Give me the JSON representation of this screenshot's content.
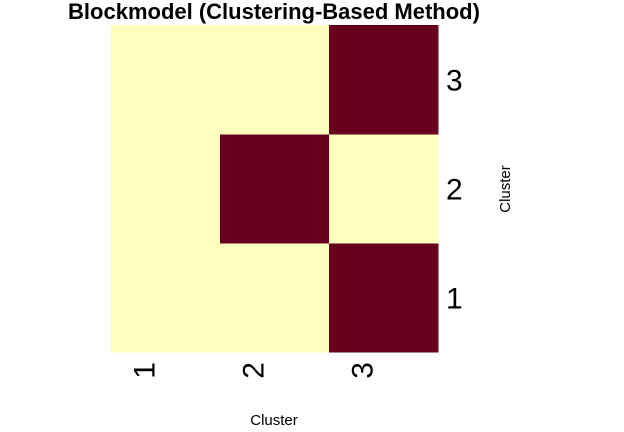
{
  "chart_data": {
    "type": "heatmap",
    "title": "Blockmodel (Clustering-Based Method)",
    "xlabel": "Cluster",
    "ylabel": "Cluster",
    "x_categories": [
      "1",
      "2",
      "3"
    ],
    "y_categories": [
      "1",
      "2",
      "3"
    ],
    "values": [
      [
        0,
        0,
        1
      ],
      [
        0,
        1,
        0
      ],
      [
        0,
        0,
        1
      ]
    ],
    "value_axis_note": "values[i] is row for y_categories[i] (bottom to top); values[i][j] is column x_categories[j]",
    "colors": {
      "low": "#FFFFBF",
      "high": "#67001F"
    },
    "legend": "none",
    "grid": false
  }
}
